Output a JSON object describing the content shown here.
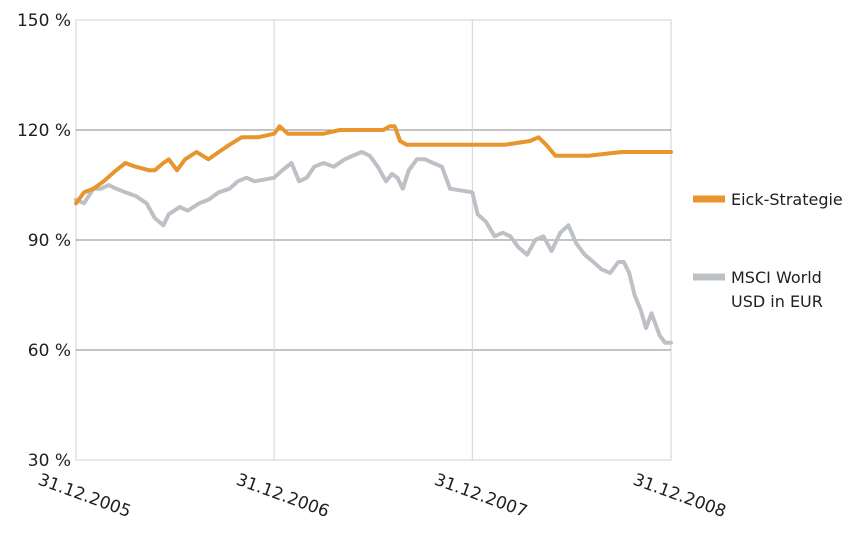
{
  "chart_data": {
    "type": "line",
    "title": "",
    "xlabel": "",
    "ylabel": "",
    "ylim": [
      30,
      150
    ],
    "y_unit": "%",
    "y_ticks": [
      {
        "value": 30,
        "label": "30 %"
      },
      {
        "value": 60,
        "label": "60 %"
      },
      {
        "value": 90,
        "label": "90 %"
      },
      {
        "value": 120,
        "label": "120 %"
      },
      {
        "value": 150,
        "label": "150 %"
      }
    ],
    "x_ticks": [
      "31.12.2005",
      "31.12.2006",
      "31.12.2007",
      "31.12.2008"
    ],
    "grid": "on",
    "legend_position": "right",
    "series": [
      {
        "name": "Eick-Strategie",
        "color": "#e8952e",
        "x": [
          "31.12.2005",
          "2006-01-15",
          "2006-02-01",
          "2006-02-20",
          "2006-03-15",
          "2006-04-01",
          "2006-04-20",
          "2006-05-15",
          "2006-05-25",
          "2006-06-10",
          "2006-06-20",
          "2006-07-05",
          "2006-07-20",
          "2006-08-10",
          "2006-09-01",
          "2006-09-20",
          "2006-10-10",
          "2006-11-01",
          "2006-12-01",
          "31.12.2006",
          "2007-01-10",
          "2007-01-25",
          "2007-02-10",
          "2007-03-01",
          "2007-04-01",
          "2007-05-01",
          "2007-06-01",
          "2007-07-01",
          "2007-07-20",
          "2007-08-01",
          "2007-08-10",
          "2007-08-20",
          "2007-09-01",
          "2007-10-01",
          "2007-11-01",
          "31.12.2007",
          "2008-02-01",
          "2008-03-01",
          "2008-04-15",
          "2008-05-01",
          "2008-05-15",
          "2008-06-01",
          "2008-06-20",
          "2008-07-10",
          "2008-08-01",
          "2008-10-01",
          "31.12.2008"
        ],
        "values": [
          100,
          103,
          104,
          106,
          109,
          111,
          110,
          109,
          109,
          111,
          112,
          109,
          112,
          114,
          112,
          114,
          116,
          118,
          118,
          119,
          121,
          119,
          119,
          119,
          119,
          120,
          120,
          120,
          120,
          121,
          121,
          117,
          116,
          116,
          116,
          116,
          116,
          116,
          117,
          118,
          116,
          113,
          113,
          113,
          113,
          114,
          114
        ]
      },
      {
        "name": "MSCI World USD in EUR",
        "color": "#bdc1c6",
        "x": [
          "31.12.2005",
          "2006-01-15",
          "2006-02-01",
          "2006-02-15",
          "2006-03-01",
          "2006-03-15",
          "2006-04-01",
          "2006-04-20",
          "2006-05-10",
          "2006-05-25",
          "2006-06-10",
          "2006-06-20",
          "2006-07-10",
          "2006-07-25",
          "2006-08-15",
          "2006-09-01",
          "2006-09-20",
          "2006-10-10",
          "2006-10-25",
          "2006-11-10",
          "2006-11-25",
          "31.12.2006",
          "2007-01-15",
          "2007-02-01",
          "2007-02-15",
          "2007-03-01",
          "2007-03-15",
          "2007-04-01",
          "2007-04-20",
          "2007-05-10",
          "2007-05-25",
          "2007-06-10",
          "2007-06-25",
          "2007-07-10",
          "2007-07-25",
          "2007-08-05",
          "2007-08-15",
          "2007-08-25",
          "2007-09-05",
          "2007-09-20",
          "2007-10-05",
          "2007-10-20",
          "2007-11-05",
          "2007-11-20",
          "31.12.2007",
          "2008-01-10",
          "2008-01-25",
          "2008-02-10",
          "2008-02-25",
          "2008-03-10",
          "2008-03-25",
          "2008-04-10",
          "2008-04-25",
          "2008-05-10",
          "2008-05-25",
          "2008-06-10",
          "2008-06-25",
          "2008-07-10",
          "2008-07-25",
          "2008-08-10",
          "2008-08-25",
          "2008-09-10",
          "2008-09-25",
          "2008-10-05",
          "2008-10-15",
          "2008-10-25",
          "2008-11-05",
          "2008-11-15",
          "2008-11-25",
          "2008-12-10",
          "2008-12-20",
          "31.12.2008"
        ],
        "values": [
          101,
          100,
          104,
          104,
          105,
          104,
          103,
          102,
          100,
          96,
          94,
          97,
          99,
          98,
          100,
          101,
          103,
          104,
          106,
          107,
          106,
          107,
          109,
          111,
          106,
          107,
          110,
          111,
          110,
          112,
          113,
          114,
          113,
          110,
          106,
          108,
          107,
          104,
          109,
          112,
          112,
          111,
          110,
          104,
          103,
          97,
          95,
          91,
          92,
          91,
          88,
          86,
          90,
          91,
          87,
          92,
          94,
          89,
          86,
          84,
          82,
          81,
          84,
          84,
          81,
          75,
          71,
          66,
          70,
          64,
          62,
          62
        ]
      }
    ]
  }
}
